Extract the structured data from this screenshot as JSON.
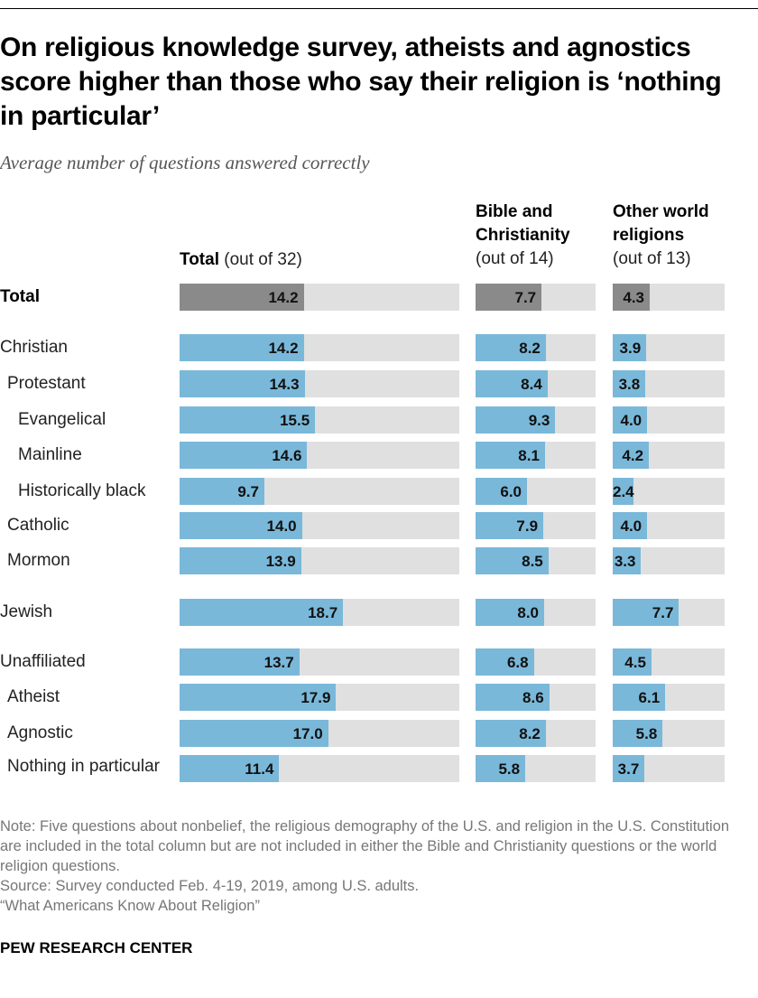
{
  "title": "On religious knowledge survey, atheists and agnostics score higher than those who say their religion is ‘nothing in particular’",
  "subtitle": "Average number of questions answered correctly",
  "colors": {
    "total_bar": "#8a8a8a",
    "group_bar": "#7ab8d9",
    "track": "#e0e0e0"
  },
  "chart_data": {
    "type": "bar",
    "orientation": "horizontal",
    "columns": [
      {
        "bold": "Total",
        "label": "(out of 32)",
        "max": 32
      },
      {
        "bold": "Bible and Christianity",
        "label": "(out of 14)",
        "max": 14
      },
      {
        "bold": "Other world religions",
        "label": "(out of 13)",
        "max": 13
      }
    ],
    "rows": [
      {
        "label": "Total",
        "level": 0,
        "values": [
          14.2,
          7.7,
          4.3
        ],
        "display": [
          "14.2",
          "7.7",
          "4.3"
        ]
      },
      {
        "label": "Christian",
        "level": 0,
        "values": [
          14.2,
          8.2,
          3.9
        ],
        "display": [
          "14.2",
          "8.2",
          "3.9"
        ]
      },
      {
        "label": "Protestant",
        "level": 1,
        "values": [
          14.3,
          8.4,
          3.8
        ],
        "display": [
          "14.3",
          "8.4",
          "3.8"
        ]
      },
      {
        "label": "Evangelical",
        "level": 2,
        "values": [
          15.5,
          9.3,
          4.0
        ],
        "display": [
          "15.5",
          "9.3",
          "4.0"
        ]
      },
      {
        "label": "Mainline",
        "level": 2,
        "values": [
          14.6,
          8.1,
          4.2
        ],
        "display": [
          "14.6",
          "8.1",
          "4.2"
        ]
      },
      {
        "label": "Historically black",
        "level": 2,
        "values": [
          9.7,
          6.0,
          2.4
        ],
        "display": [
          "9.7",
          "6.0",
          "2.4"
        ]
      },
      {
        "label": "Catholic",
        "level": 1,
        "values": [
          14.0,
          7.9,
          4.0
        ],
        "display": [
          "14.0",
          "7.9",
          "4.0"
        ]
      },
      {
        "label": "Mormon",
        "level": 1,
        "values": [
          13.9,
          8.5,
          3.3
        ],
        "display": [
          "13.9",
          "8.5",
          "3.3"
        ]
      },
      {
        "label": "Jewish",
        "level": 0,
        "values": [
          18.7,
          8.0,
          7.7
        ],
        "display": [
          "18.7",
          "8.0",
          "7.7"
        ]
      },
      {
        "label": "Unaffiliated",
        "level": 0,
        "values": [
          13.7,
          6.8,
          4.5
        ],
        "display": [
          "13.7",
          "6.8",
          "4.5"
        ]
      },
      {
        "label": "Atheist",
        "level": 1,
        "values": [
          17.9,
          8.6,
          6.1
        ],
        "display": [
          "17.9",
          "8.6",
          "6.1"
        ]
      },
      {
        "label": "Agnostic",
        "level": 1,
        "values": [
          17.0,
          8.2,
          5.8
        ],
        "display": [
          "17.0",
          "8.2",
          "5.8"
        ]
      },
      {
        "label": "Nothing in particular",
        "level": 1,
        "values": [
          11.4,
          5.8,
          3.7
        ],
        "display": [
          "11.4",
          "5.8",
          "3.7"
        ]
      }
    ]
  },
  "notes": [
    "Note: Five questions about nonbelief, the religious demography of the U.S. and religion in the U.S. Constitution are included in the total column but are not included in either the Bible and Christianity questions or the world religion questions.",
    "Source: Survey conducted Feb. 4-19, 2019, among U.S. adults.",
    "“What Americans Know About Religion”"
  ],
  "brand": "PEW RESEARCH CENTER"
}
